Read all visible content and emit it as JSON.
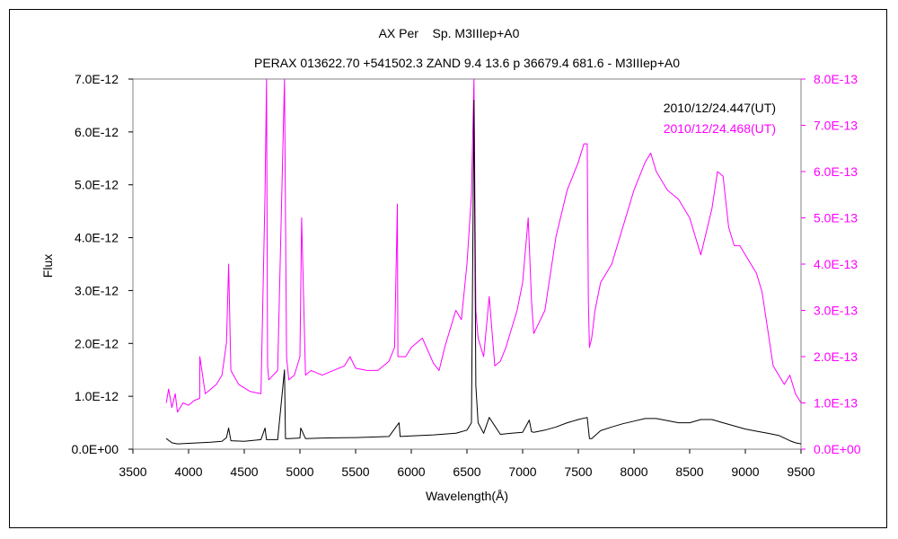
{
  "chart_data": {
    "type": "line",
    "title": "AX Per    Sp. M3IIIep+A0",
    "subtitle": "PERAX 013622.70 +541502.3 ZAND 9.4 13.6 p 36679.4 681.6 - M3IIIep+A0",
    "xlabel": "Wavelength(Å)",
    "ylabel": "Flux",
    "xlim": [
      3500,
      9500
    ],
    "x_ticks": [
      "3500",
      "4000",
      "4500",
      "5000",
      "5500",
      "6000",
      "6500",
      "7000",
      "7500",
      "8000",
      "8500",
      "9000",
      "9500"
    ],
    "ylim_left": [
      0,
      7e-12
    ],
    "y_left_ticks": [
      "0.0E+00",
      "1.0E-12",
      "2.0E-12",
      "3.0E-12",
      "4.0E-12",
      "5.0E-12",
      "6.0E-12",
      "7.0E-12"
    ],
    "ylim_right": [
      0,
      8e-13
    ],
    "y_right_ticks": [
      "0.0E+00",
      "1.0E-13",
      "2.0E-13",
      "3.0E-13",
      "4.0E-13",
      "5.0E-13",
      "6.0E-13",
      "7.0E-13",
      "8.0E-13"
    ],
    "grid": false,
    "legend_placement": "top-right",
    "series": [
      {
        "name": "2010/12/24.447(UT)",
        "color": "#000000",
        "axis": "left",
        "x": [
          3800,
          3850,
          3900,
          4000,
          4100,
          4200,
          4300,
          4340,
          4360,
          4380,
          4500,
          4650,
          4686,
          4700,
          4800,
          4861,
          4870,
          4900,
          5000,
          5007,
          5050,
          5200,
          5500,
          5800,
          5890,
          5900,
          6000,
          6200,
          6400,
          6500,
          6540,
          6563,
          6580,
          6600,
          6650,
          6700,
          6800,
          6900,
          7000,
          7060,
          7080,
          7100,
          7200,
          7300,
          7400,
          7500,
          7580,
          7600,
          7620,
          7700,
          7800,
          7900,
          8000,
          8100,
          8200,
          8300,
          8400,
          8500,
          8600,
          8700,
          8800,
          8900,
          9000,
          9100,
          9200,
          9300,
          9400,
          9450,
          9500
        ],
        "y": [
          2e-13,
          1.2e-13,
          1e-13,
          1.1e-13,
          1.2e-13,
          1.3e-13,
          1.5e-13,
          2.2e-13,
          4e-13,
          1.6e-13,
          1.5e-13,
          1.8e-13,
          4e-13,
          1.8e-13,
          1.8e-13,
          1.5e-12,
          2e-13,
          2e-13,
          2.1e-13,
          4e-13,
          2e-13,
          2.1e-13,
          2.2e-13,
          2.4e-13,
          5e-13,
          2.4e-13,
          2.5e-13,
          2.7e-13,
          3e-13,
          3.6e-13,
          5e-13,
          6.6e-12,
          1.2e-12,
          5e-13,
          3e-13,
          6e-13,
          2.8e-13,
          3e-13,
          3.2e-13,
          5.5e-13,
          3.3e-13,
          3.2e-13,
          3.6e-13,
          4.2e-13,
          5e-13,
          5.6e-13,
          6e-13,
          2e-13,
          2e-13,
          3.5e-13,
          4.2e-13,
          4.8e-13,
          5.3e-13,
          5.8e-13,
          5.8e-13,
          5.4e-13,
          5e-13,
          5e-13,
          5.6e-13,
          5.6e-13,
          5e-13,
          4.4e-13,
          3.8e-13,
          3.4e-13,
          3e-13,
          2.6e-13,
          1.6e-13,
          1.2e-13,
          1e-13
        ]
      },
      {
        "name": "2010/12/24.468(UT)",
        "color": "#ff00ff",
        "axis": "right",
        "x": [
          3800,
          3820,
          3850,
          3880,
          3900,
          3950,
          4000,
          4050,
          4100,
          4101,
          4150,
          4200,
          4250,
          4300,
          4340,
          4360,
          4380,
          4450,
          4550,
          4650,
          4686,
          4700,
          4710,
          4720,
          4800,
          4861,
          4880,
          4900,
          4950,
          5000,
          5015,
          5050,
          5100,
          5200,
          5300,
          5400,
          5450,
          5500,
          5600,
          5700,
          5800,
          5850,
          5875,
          5880,
          5950,
          6000,
          6100,
          6200,
          6250,
          6300,
          6400,
          6450,
          6500,
          6540,
          6563,
          6580,
          6600,
          6650,
          6700,
          6750,
          6800,
          6850,
          6900,
          6950,
          7000,
          7050,
          7080,
          7100,
          7200,
          7300,
          7400,
          7500,
          7550,
          7580,
          7590,
          7600,
          7620,
          7650,
          7700,
          7800,
          7900,
          8000,
          8100,
          8150,
          8200,
          8300,
          8400,
          8500,
          8600,
          8700,
          8750,
          8800,
          8850,
          8900,
          8950,
          9000,
          9050,
          9100,
          9150,
          9200,
          9250,
          9300,
          9350,
          9400,
          9450,
          9500
        ],
        "y": [
          1e-13,
          1.3e-13,
          9e-14,
          1.2e-13,
          8e-14,
          1e-13,
          9.5e-14,
          1.05e-13,
          1.1e-13,
          2e-13,
          1.2e-13,
          1.3e-13,
          1.4e-13,
          1.6e-13,
          2.3e-13,
          4e-13,
          1.7e-13,
          1.4e-13,
          1.25e-13,
          1.2e-13,
          5.5e-13,
          8e-13,
          1.8e-13,
          1.5e-13,
          1.7e-13,
          8e-13,
          2e-13,
          1.5e-13,
          1.6e-13,
          2e-13,
          5e-13,
          1.6e-13,
          1.7e-13,
          1.6e-13,
          1.7e-13,
          1.8e-13,
          2e-13,
          1.75e-13,
          1.7e-13,
          1.7e-13,
          1.9e-13,
          2.2e-13,
          5.3e-13,
          2e-13,
          2e-13,
          2.2e-13,
          2.4e-13,
          1.85e-13,
          1.7e-13,
          2.2e-13,
          3e-13,
          2.8e-13,
          4e-13,
          5.5e-13,
          8e-13,
          3e-13,
          2.4e-13,
          2e-13,
          3.3e-13,
          1.8e-13,
          1.9e-13,
          2.2e-13,
          2.6e-13,
          3e-13,
          3.6e-13,
          5e-13,
          3.2e-13,
          2.5e-13,
          3e-13,
          4.6e-13,
          5.6e-13,
          6.2e-13,
          6.6e-13,
          6.6e-13,
          3.2e-13,
          2.2e-13,
          2.4e-13,
          3e-13,
          3.6e-13,
          4e-13,
          4.8e-13,
          5.6e-13,
          6.2e-13,
          6.4e-13,
          6e-13,
          5.6e-13,
          5.4e-13,
          5e-13,
          4.2e-13,
          5.2e-13,
          6e-13,
          5.9e-13,
          4.8e-13,
          4.4e-13,
          4.4e-13,
          4.2e-13,
          4e-13,
          3.8e-13,
          3.4e-13,
          2.6e-13,
          1.8e-13,
          1.6e-13,
          1.4e-13,
          1.6e-13,
          1.2e-13,
          1e-13
        ]
      }
    ]
  }
}
